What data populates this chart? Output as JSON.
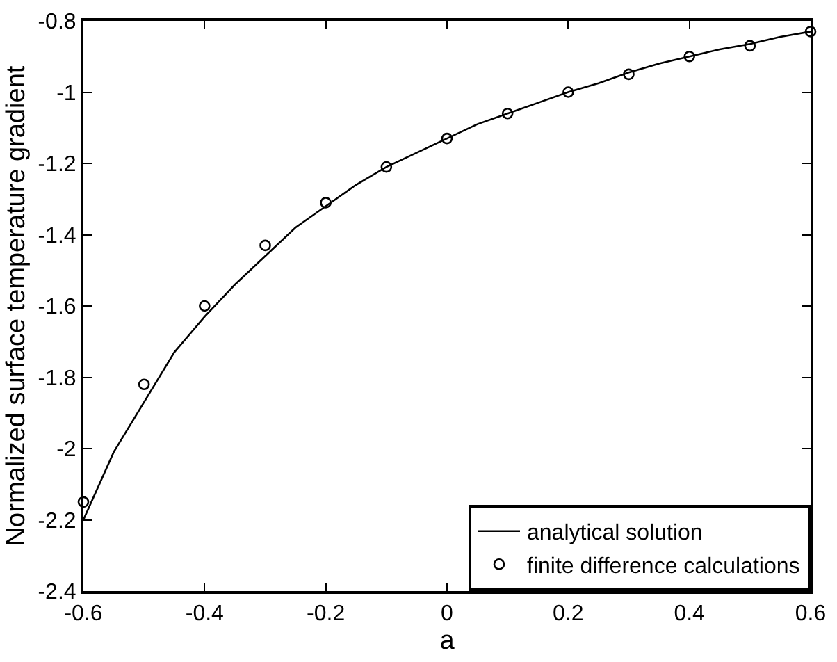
{
  "chart_data": {
    "type": "line",
    "xlabel": "a",
    "ylabel": "Normalized surface temperature gradient",
    "xlim": [
      -0.6,
      0.6
    ],
    "xticks": [
      -0.6,
      -0.4,
      -0.2,
      0,
      0.2,
      0.4,
      0.6
    ],
    "ylim": [
      -2.4,
      -0.8
    ],
    "yticks": [
      -2.4,
      -2.2,
      -2,
      -1.8,
      -1.6,
      -1.4,
      -1.2,
      -1,
      -0.8
    ],
    "grid": false,
    "legend": "bottom right",
    "series": [
      {
        "name": "analytical solution",
        "type": "line",
        "color": "#000000",
        "marker": "none",
        "line_style": "solid",
        "x": [
          -0.6,
          -0.55,
          -0.5,
          -0.45,
          -0.4,
          -0.35,
          -0.3,
          -0.25,
          -0.2,
          -0.15,
          -0.1,
          -0.05,
          0,
          0.05,
          0.1,
          0.15,
          0.2,
          0.25,
          0.3,
          0.35,
          0.4,
          0.45,
          0.5,
          0.55,
          0.6
        ],
        "values": [
          -2.2,
          -2.01,
          -1.87,
          -1.73,
          -1.63,
          -1.54,
          -1.46,
          -1.38,
          -1.32,
          -1.26,
          -1.21,
          -1.17,
          -1.13,
          -1.09,
          -1.06,
          -1.03,
          -1.0,
          -0.975,
          -0.945,
          -0.92,
          -0.9,
          -0.88,
          -0.865,
          -0.845,
          -0.83
        ]
      },
      {
        "name": "finite difference calculations",
        "type": "scatter",
        "color": "#000000",
        "marker": "circle",
        "x": [
          -0.6,
          -0.5,
          -0.4,
          -0.3,
          -0.2,
          -0.1,
          0,
          0.1,
          0.2,
          0.3,
          0.4,
          0.5,
          0.6
        ],
        "values": [
          -2.15,
          -1.82,
          -1.6,
          -1.43,
          -1.31,
          -1.21,
          -1.13,
          -1.06,
          -1.0,
          -0.95,
          -0.9,
          -0.87,
          -0.83
        ]
      }
    ]
  }
}
